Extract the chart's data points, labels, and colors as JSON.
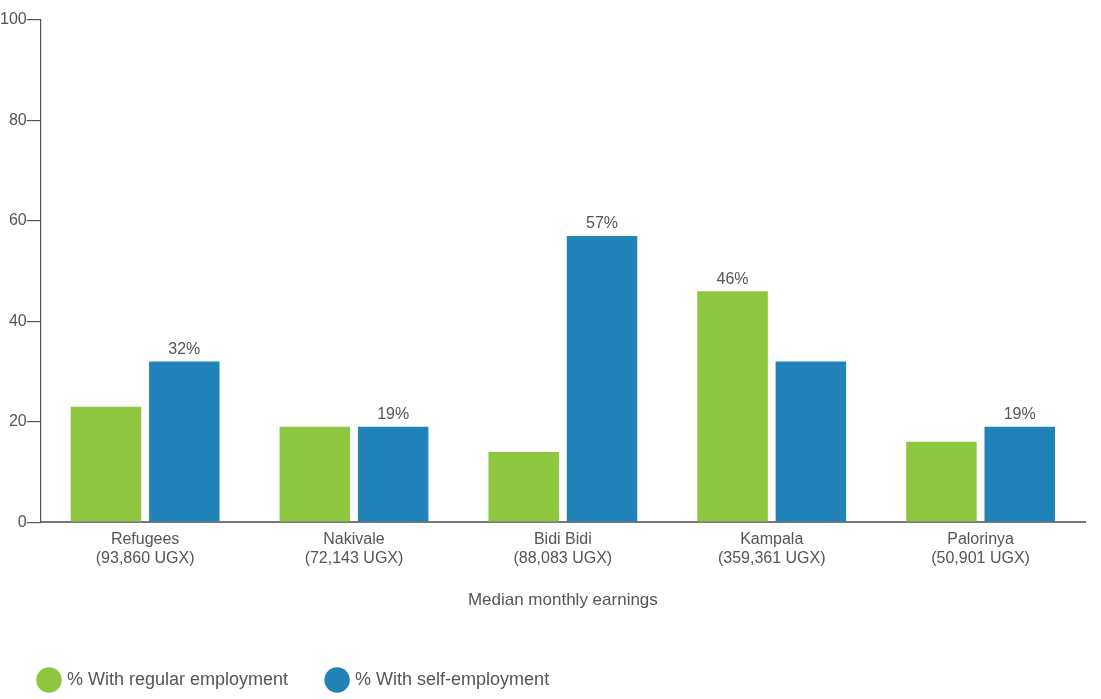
{
  "chart_data": {
    "type": "bar",
    "categories": [
      "Refugees\n(93,860 UGX)",
      "Nakivale\n(72,143 UGX)",
      "Bidi Bidi\n(88,083 UGX)",
      "Kampala\n(359,361 UGX)",
      "Palorinya\n(50,901 UGX)"
    ],
    "xlabel": "Median monthly earnings",
    "series": [
      {
        "name": "% With regular employment",
        "color": "#8dc63f",
        "values": [
          23,
          19,
          14,
          46,
          16
        ],
        "value_labels": [
          null,
          null,
          null,
          "46%",
          null
        ]
      },
      {
        "name": "% With self-employment",
        "color": "#2283b9",
        "values": [
          32,
          19,
          57,
          32,
          19
        ],
        "value_labels": [
          "32%",
          "19%",
          "57%",
          null,
          "19%"
        ]
      }
    ],
    "ylim": [
      0,
      100
    ],
    "yticks": [
      0,
      20,
      40,
      60,
      80,
      100
    ],
    "grid": false,
    "legend": "bottom left"
  }
}
